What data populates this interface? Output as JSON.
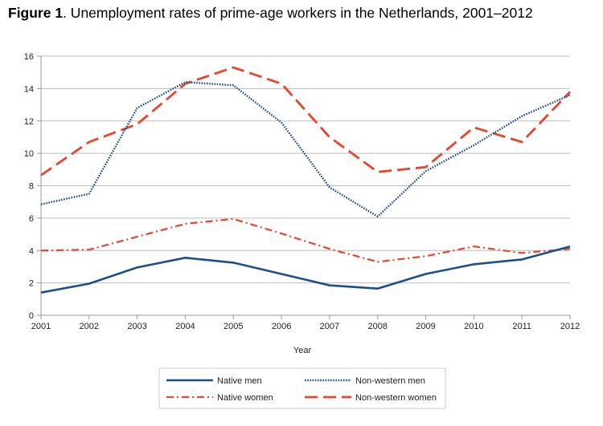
{
  "figure": {
    "label": "Figure 1",
    "caption": ". Unemployment rates of prime-age workers in the Netherlands, 2001–2012"
  },
  "chart_data": {
    "type": "line",
    "title": "Figure 1. Unemployment rates of prime-age workers in the Netherlands, 2001–2012",
    "xlabel": "Year",
    "ylabel": "",
    "x": [
      "2001",
      "2002",
      "2003",
      "2004",
      "2005",
      "2006",
      "2007",
      "2008",
      "2009",
      "2010",
      "2011",
      "2012"
    ],
    "yticks": [
      "0",
      "2",
      "4",
      "6",
      "8",
      "10",
      "12",
      "14",
      "16"
    ],
    "ylim": [
      0,
      16
    ],
    "grid": true,
    "legend_position": "bottom",
    "series": [
      {
        "name": "Native men",
        "color": "#1f4e8c",
        "style": "solid",
        "values": [
          1.4,
          1.95,
          2.95,
          3.55,
          3.25,
          2.55,
          1.85,
          1.65,
          2.55,
          3.15,
          3.45,
          4.25
        ]
      },
      {
        "name": "Non-western men",
        "color": "#1f4e8c",
        "style": "dotted",
        "values": [
          6.85,
          7.5,
          12.8,
          14.4,
          14.2,
          11.9,
          7.9,
          6.1,
          8.9,
          10.5,
          12.3,
          13.6
        ]
      },
      {
        "name": "Native women",
        "color": "#e8452c",
        "style": "dashdot",
        "values": [
          4.0,
          4.05,
          4.85,
          5.65,
          5.95,
          5.05,
          4.1,
          3.3,
          3.65,
          4.25,
          3.85,
          4.1
        ]
      },
      {
        "name": "Non-western women",
        "color": "#e8452c",
        "style": "longdash",
        "values": [
          8.65,
          10.7,
          11.8,
          14.3,
          15.3,
          14.3,
          11.0,
          8.85,
          9.15,
          11.6,
          10.7,
          13.8
        ]
      }
    ]
  }
}
